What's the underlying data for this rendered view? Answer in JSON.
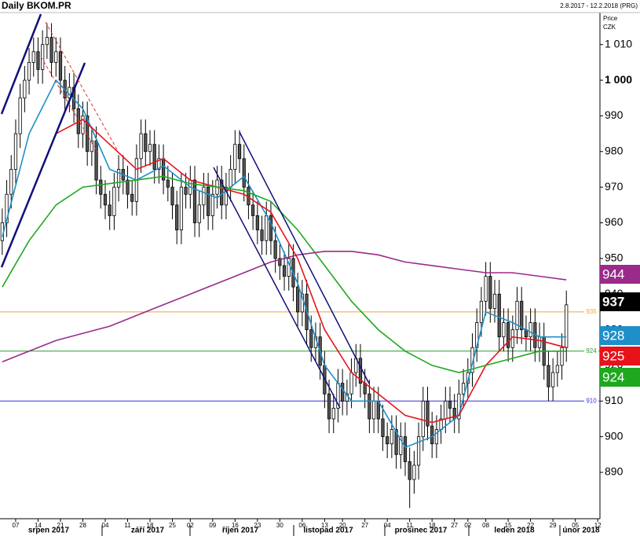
{
  "chart_data": {
    "type": "candlestick",
    "title": "Daily BKOM.PR",
    "date_range": "2.8.2017 - 12.2.2018 (PRG)",
    "y_axis_label": "Price",
    "y_axis_unit": "CZK",
    "open": [
      955,
      960,
      968,
      975,
      985,
      995,
      1000,
      1005,
      1008,
      1003,
      1010,
      1012,
      1005,
      1008,
      1000,
      995,
      998,
      992,
      985,
      990,
      980,
      983,
      972,
      968,
      965,
      962,
      970,
      975,
      972,
      968,
      966,
      978,
      985,
      980,
      982,
      975,
      978,
      972,
      970,
      965,
      958,
      970,
      968,
      972,
      960,
      965,
      970,
      962,
      968,
      972,
      965,
      970,
      975,
      982,
      978,
      970,
      965,
      962,
      958,
      955,
      962,
      955,
      950,
      948,
      945,
      950,
      942,
      935,
      940,
      930,
      925,
      928,
      920,
      912,
      905,
      908,
      915,
      910,
      912,
      918,
      922,
      915,
      912,
      905,
      910,
      905,
      900,
      898,
      902,
      895,
      900,
      893,
      888,
      892,
      900,
      910,
      903,
      898,
      902,
      905,
      910,
      908,
      905,
      912,
      915,
      918,
      925,
      932,
      938,
      945,
      936,
      940,
      928,
      932,
      925,
      930,
      938,
      930,
      928,
      932,
      925,
      928,
      920,
      914,
      918,
      920,
      925
    ],
    "high": [
      964,
      972,
      979,
      989,
      999,
      1004,
      1009,
      1012,
      1012,
      1014,
      1016,
      1016,
      1012,
      1012,
      1004,
      1002,
      1002,
      996,
      994,
      994,
      987,
      987,
      976,
      972,
      969,
      974,
      979,
      979,
      976,
      972,
      982,
      989,
      989,
      986,
      986,
      982,
      982,
      976,
      974,
      969,
      974,
      974,
      976,
      976,
      969,
      974,
      974,
      972,
      976,
      976,
      974,
      979,
      986,
      986,
      982,
      974,
      969,
      966,
      962,
      966,
      966,
      959,
      954,
      952,
      954,
      954,
      946,
      944,
      944,
      934,
      932,
      932,
      924,
      916,
      912,
      919,
      919,
      916,
      922,
      926,
      926,
      919,
      916,
      914,
      914,
      909,
      904,
      906,
      906,
      904,
      904,
      897,
      896,
      904,
      914,
      914,
      907,
      906,
      909,
      914,
      914,
      912,
      916,
      919,
      922,
      929,
      936,
      942,
      949,
      949,
      944,
      944,
      936,
      936,
      934,
      942,
      942,
      934,
      936,
      936,
      932,
      932,
      924,
      922,
      924,
      929,
      941
    ],
    "low": [
      951,
      956,
      964,
      971,
      981,
      991,
      996,
      1001,
      999,
      999,
      1006,
      1001,
      1001,
      996,
      991,
      991,
      988,
      981,
      981,
      976,
      976,
      968,
      964,
      961,
      958,
      958,
      966,
      968,
      964,
      962,
      962,
      974,
      976,
      976,
      971,
      971,
      968,
      966,
      961,
      954,
      954,
      964,
      964,
      956,
      956,
      961,
      958,
      958,
      964,
      961,
      961,
      966,
      971,
      974,
      966,
      961,
      958,
      954,
      951,
      951,
      951,
      946,
      944,
      941,
      941,
      938,
      931,
      931,
      926,
      921,
      921,
      916,
      908,
      901,
      901,
      904,
      906,
      906,
      908,
      914,
      911,
      908,
      901,
      901,
      901,
      896,
      894,
      894,
      891,
      891,
      889,
      880,
      884,
      888,
      896,
      899,
      894,
      894,
      898,
      901,
      904,
      901,
      901,
      908,
      911,
      914,
      921,
      928,
      934,
      932,
      932,
      924,
      924,
      921,
      921,
      926,
      926,
      924,
      924,
      921,
      921,
      916,
      910,
      910,
      914,
      916,
      921
    ],
    "close": [
      960,
      968,
      975,
      985,
      995,
      1000,
      1005,
      1008,
      1003,
      1010,
      1012,
      1005,
      1008,
      1000,
      995,
      998,
      992,
      985,
      990,
      980,
      983,
      972,
      968,
      965,
      962,
      970,
      975,
      972,
      968,
      966,
      978,
      985,
      980,
      982,
      975,
      978,
      972,
      970,
      965,
      958,
      970,
      968,
      972,
      960,
      965,
      970,
      962,
      968,
      972,
      965,
      970,
      975,
      982,
      978,
      970,
      965,
      962,
      958,
      955,
      962,
      955,
      950,
      948,
      945,
      950,
      942,
      935,
      940,
      930,
      925,
      928,
      920,
      912,
      905,
      908,
      915,
      910,
      912,
      918,
      922,
      915,
      912,
      905,
      910,
      905,
      900,
      898,
      902,
      895,
      900,
      893,
      888,
      892,
      900,
      910,
      903,
      898,
      902,
      905,
      910,
      908,
      905,
      912,
      915,
      918,
      925,
      932,
      938,
      945,
      936,
      940,
      928,
      932,
      925,
      930,
      938,
      930,
      928,
      932,
      925,
      928,
      920,
      914,
      918,
      920,
      925,
      937
    ],
    "up_color": "#ffffff",
    "down_color": "#555555",
    "lines": [
      {
        "color": "#1e8fc8",
        "x": [
          0,
          6,
          12,
          18,
          24,
          30,
          36,
          42,
          48,
          54,
          60,
          66,
          72,
          78,
          84,
          90,
          96,
          102,
          108,
          114,
          120,
          126
        ],
        "values": [
          956,
          985,
          1000,
          992,
          975,
          972,
          976,
          970,
          967,
          973,
          960,
          943,
          920,
          910,
          910,
          897,
          900,
          906,
          935,
          932,
          928,
          928
        ]
      },
      {
        "color": "#e8121a",
        "x": [
          0,
          6,
          12,
          18,
          24,
          30,
          36,
          42,
          48,
          54,
          60,
          66,
          72,
          78,
          84,
          90,
          96,
          102,
          108,
          114,
          120,
          126
        ],
        "values": [
          null,
          null,
          985,
          989,
          982,
          975,
          978,
          972,
          970,
          968,
          963,
          950,
          930,
          918,
          912,
          906,
          904,
          906,
          920,
          928,
          927,
          925
        ]
      },
      {
        "color": "#1fa81f",
        "x": [
          0,
          6,
          12,
          18,
          24,
          30,
          36,
          42,
          48,
          54,
          60,
          66,
          72,
          78,
          84,
          90,
          96,
          102,
          108,
          114,
          120,
          126
        ],
        "values": [
          942,
          955,
          965,
          970,
          971,
          972,
          973,
          971,
          970,
          969,
          966,
          958,
          948,
          938,
          930,
          924,
          920,
          918,
          920,
          922,
          924,
          924
        ]
      },
      {
        "color": "#9b2a8a",
        "x": [
          0,
          6,
          12,
          18,
          24,
          30,
          36,
          42,
          48,
          54,
          60,
          66,
          72,
          78,
          84,
          90,
          96,
          102,
          108,
          114,
          120,
          126
        ],
        "values": [
          921,
          924,
          927,
          929,
          931,
          934,
          937,
          940,
          943,
          946,
          949,
          951,
          952,
          952,
          951,
          949,
          948,
          947,
          946,
          946,
          945,
          944
        ]
      }
    ],
    "levels": [
      {
        "value": 935,
        "color": "#f0a040"
      },
      {
        "value": 924,
        "color": "#2a9a2a"
      },
      {
        "value": 910,
        "color": "#3535e0"
      }
    ],
    "price_labels": [
      {
        "label": 944,
        "color": "#9b2a8a"
      },
      {
        "label": 937,
        "color": "#000000"
      },
      {
        "label": 928,
        "color": "#1e8fc8"
      },
      {
        "label": 925,
        "color": "#e8121a"
      },
      {
        "label": 924,
        "color": "#1fa81f"
      }
    ],
    "ylim": [
      877,
      1022.5
    ],
    "yticks": [
      890,
      900,
      910,
      920,
      930,
      940,
      950,
      960,
      970,
      980,
      990,
      {
        "value": 1000,
        "label": "1 000"
      },
      {
        "value": 1010,
        "label": "1 010"
      }
    ],
    "xlim": [
      -0.5,
      133.5
    ],
    "xticks": [
      {
        "value": 3,
        "label": "07"
      },
      {
        "value": 8,
        "label": "14"
      },
      {
        "value": 13,
        "label": "21"
      },
      {
        "value": 18,
        "label": "28"
      },
      {
        "value": 23,
        "label": "04"
      },
      {
        "value": 28,
        "label": "11"
      },
      {
        "value": 33,
        "label": "18"
      },
      {
        "value": 38,
        "label": "25"
      },
      {
        "value": 42,
        "label": "02"
      },
      {
        "value": 47,
        "label": "09"
      },
      {
        "value": 52,
        "label": "16"
      },
      {
        "value": 57,
        "label": "23"
      },
      {
        "value": 62,
        "label": "30"
      },
      {
        "value": 67,
        "label": "06"
      },
      {
        "value": 72,
        "label": "13"
      },
      {
        "value": 76,
        "label": "20"
      },
      {
        "value": 81,
        "label": "27"
      },
      {
        "value": 86,
        "label": "04"
      },
      {
        "value": 91,
        "label": "11"
      },
      {
        "value": 96,
        "label": "18"
      },
      {
        "value": 101,
        "label": "27"
      },
      {
        "value": 104,
        "label": "02"
      },
      {
        "value": 108,
        "label": "08"
      },
      {
        "value": 113,
        "label": "15"
      },
      {
        "value": 118,
        "label": "22"
      },
      {
        "value": 123,
        "label": "29"
      },
      {
        "value": 128,
        "label": "05"
      },
      {
        "value": 133,
        "label": "12"
      }
    ],
    "months": [
      "srpen 2017",
      "září 2017",
      "říjen 2017",
      "listopad 2017",
      "prosinec 2017",
      "leden 2018",
      "únor 2018"
    ]
  }
}
